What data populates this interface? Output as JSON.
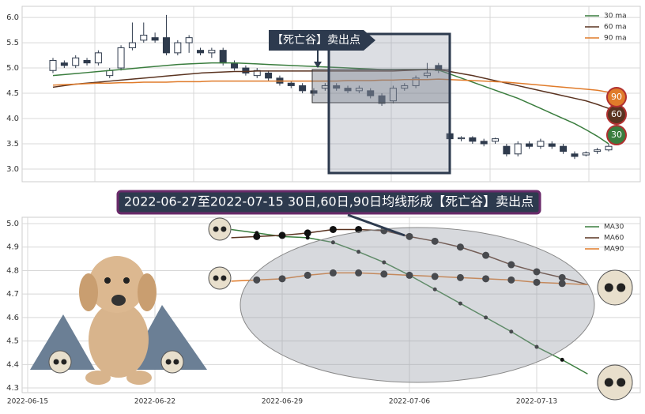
{
  "chart_data": [
    {
      "type": "candlestick",
      "annotation": "【死亡谷】卖出点",
      "open": [
        4.95,
        5.1,
        5.05,
        5.15,
        5.1,
        4.85,
        5.0,
        5.4,
        5.55,
        5.6,
        5.6,
        5.3,
        5.5,
        5.35,
        5.3,
        5.35,
        5.1,
        5.0,
        4.85,
        4.9,
        4.8,
        4.7,
        4.65,
        4.55,
        4.6,
        4.65,
        4.6,
        4.55,
        4.55,
        4.45,
        4.35,
        4.6,
        4.65,
        4.85,
        5.05,
        3.7,
        3.6,
        3.62,
        3.55,
        3.55,
        3.45,
        3.3,
        3.5,
        3.45,
        3.5,
        3.45,
        3.3,
        3.28,
        3.35,
        3.38
      ],
      "close": [
        5.15,
        5.05,
        5.2,
        5.1,
        5.3,
        4.95,
        5.4,
        5.5,
        5.65,
        5.55,
        5.3,
        5.5,
        5.6,
        5.3,
        5.35,
        5.1,
        5.0,
        4.9,
        4.95,
        4.8,
        4.7,
        4.65,
        4.55,
        4.5,
        4.65,
        4.6,
        4.55,
        4.6,
        4.45,
        4.3,
        4.6,
        4.65,
        4.8,
        4.9,
        4.95,
        3.6,
        3.62,
        3.55,
        3.5,
        3.6,
        3.3,
        3.5,
        3.45,
        3.55,
        3.45,
        3.35,
        3.25,
        3.32,
        3.38,
        3.45
      ],
      "high": [
        5.2,
        5.15,
        5.25,
        5.2,
        5.35,
        5.0,
        5.45,
        5.9,
        5.9,
        5.7,
        6.05,
        5.55,
        5.65,
        5.4,
        5.4,
        5.4,
        5.15,
        5.05,
        5.0,
        4.95,
        4.85,
        4.75,
        4.7,
        4.6,
        4.7,
        4.7,
        4.65,
        4.65,
        4.6,
        4.5,
        4.65,
        4.7,
        4.85,
        5.1,
        5.1,
        3.75,
        3.65,
        3.65,
        3.6,
        3.62,
        3.5,
        3.55,
        3.55,
        3.6,
        3.55,
        3.5,
        3.35,
        3.35,
        3.42,
        3.5
      ],
      "low": [
        4.9,
        5.0,
        5.0,
        5.05,
        5.05,
        4.8,
        4.95,
        5.35,
        5.5,
        5.5,
        5.25,
        5.25,
        5.3,
        5.25,
        5.2,
        5.05,
        4.95,
        4.85,
        4.8,
        4.75,
        4.65,
        4.6,
        4.5,
        4.45,
        4.55,
        4.55,
        4.5,
        4.5,
        4.4,
        4.25,
        4.3,
        4.55,
        4.6,
        4.8,
        4.9,
        3.55,
        3.55,
        3.5,
        3.45,
        3.5,
        3.25,
        3.25,
        3.4,
        3.4,
        3.4,
        3.3,
        3.2,
        3.25,
        3.3,
        3.35
      ],
      "up_color": "#ffffff",
      "down_color": "#2f3b4d",
      "ylim": [
        2.75,
        6.22
      ],
      "yticks": [
        {
          "value": 3,
          "label": "3.0"
        },
        3.5,
        {
          "value": 4,
          "label": "4.0"
        },
        4.5,
        {
          "value": 5,
          "label": "5.0"
        },
        5.5,
        {
          "value": 6,
          "label": "6.0"
        }
      ],
      "grid": true,
      "legend": "upper right",
      "series": [
        {
          "name": "30 ma",
          "color": "#3a7d3e",
          "badge": "30",
          "values": [
            4.85,
            4.87,
            4.89,
            4.91,
            4.93,
            4.95,
            4.97,
            4.99,
            5.01,
            5.03,
            5.05,
            5.07,
            5.08,
            5.09,
            5.1,
            5.1,
            5.1,
            5.09,
            5.08,
            5.07,
            5.06,
            5.05,
            5.04,
            5.03,
            5.02,
            5.01,
            5.0,
            4.99,
            4.98,
            4.97,
            4.97,
            4.97,
            4.97,
            4.97,
            4.96,
            4.88,
            4.8,
            4.72,
            4.64,
            4.56,
            4.48,
            4.4,
            4.3,
            4.2,
            4.1,
            4.0,
            3.9,
            3.78,
            3.65,
            3.5
          ]
        },
        {
          "name": "60 ma",
          "color": "#5a3320",
          "badge": "60",
          "values": [
            4.62,
            4.65,
            4.68,
            4.7,
            4.72,
            4.74,
            4.76,
            4.78,
            4.8,
            4.82,
            4.84,
            4.86,
            4.88,
            4.9,
            4.91,
            4.92,
            4.93,
            4.93,
            4.94,
            4.94,
            4.94,
            4.94,
            4.94,
            4.94,
            4.94,
            4.94,
            4.94,
            4.94,
            4.94,
            4.94,
            4.94,
            4.95,
            4.96,
            4.97,
            4.97,
            4.93,
            4.89,
            4.85,
            4.8,
            4.75,
            4.7,
            4.65,
            4.6,
            4.55,
            4.5,
            4.45,
            4.4,
            4.35,
            4.28,
            4.2
          ]
        },
        {
          "name": "90 ma",
          "color": "#e07b2a",
          "badge": "90",
          "values": [
            4.66,
            4.67,
            4.68,
            4.69,
            4.7,
            4.7,
            4.71,
            4.71,
            4.72,
            4.72,
            4.72,
            4.73,
            4.73,
            4.73,
            4.74,
            4.74,
            4.74,
            4.74,
            4.74,
            4.74,
            4.74,
            4.74,
            4.74,
            4.74,
            4.74,
            4.74,
            4.75,
            4.75,
            4.75,
            4.76,
            4.76,
            4.77,
            4.77,
            4.77,
            4.78,
            4.77,
            4.76,
            4.75,
            4.74,
            4.73,
            4.72,
            4.7,
            4.68,
            4.66,
            4.64,
            4.62,
            4.6,
            4.58,
            4.56,
            4.52
          ]
        }
      ]
    },
    {
      "type": "line",
      "title": "2022-06-27至2022-07-15 30日,60日,90日均线形成【死亡谷】卖出点",
      "categories": [
        "2022-06-15",
        null,
        null,
        null,
        null,
        "2022-06-22",
        null,
        null,
        null,
        null,
        "2022-06-29",
        null,
        null,
        null,
        null,
        "2022-07-06",
        null,
        null,
        null,
        null,
        "2022-07-13",
        null,
        null
      ],
      "ylim": [
        4.28,
        5.027
      ],
      "yticks": [
        4.3,
        4.4,
        4.5,
        4.6,
        4.7,
        4.8,
        4.9,
        {
          "value": 5,
          "label": "5.0"
        }
      ],
      "grid": true,
      "legend": "upper right",
      "series": [
        {
          "name": "MA30",
          "color": "#3a7d3e",
          "values": [
            null,
            null,
            null,
            null,
            null,
            null,
            null,
            null,
            4.975,
            4.96,
            4.945,
            4.94,
            4.92,
            4.88,
            4.835,
            4.78,
            4.72,
            4.66,
            4.6,
            4.54,
            4.475,
            4.42,
            4.36
          ]
        },
        {
          "name": "MA60",
          "color": "#5a3320",
          "values": [
            null,
            null,
            null,
            null,
            null,
            null,
            null,
            null,
            4.94,
            4.945,
            4.95,
            4.96,
            4.975,
            4.975,
            4.97,
            4.945,
            4.925,
            4.9,
            4.865,
            4.825,
            4.795,
            4.77,
            4.74
          ]
        },
        {
          "name": "MA90",
          "color": "#e07b2a",
          "values": [
            null,
            null,
            null,
            null,
            null,
            null,
            null,
            null,
            4.755,
            4.76,
            4.765,
            4.78,
            4.79,
            4.79,
            4.785,
            4.78,
            4.775,
            4.77,
            4.765,
            4.76,
            4.75,
            4.745,
            4.74
          ]
        }
      ]
    }
  ]
}
